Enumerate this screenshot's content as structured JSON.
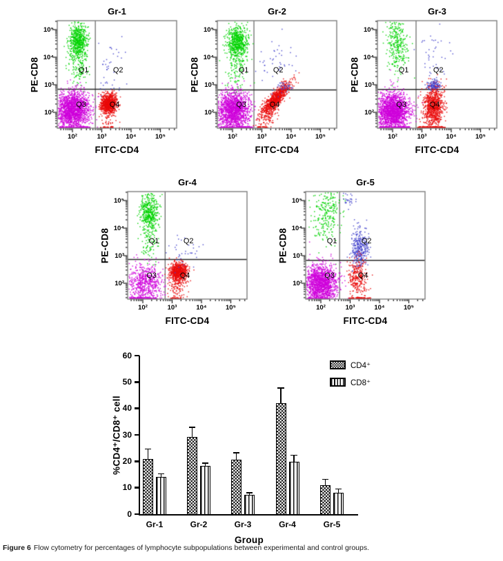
{
  "figure": {
    "caption_label": "Figure 6",
    "caption_text": "Flow cytometry for percentages of lymphocyte subpopulations between experimental and control groups."
  },
  "flow_colors": {
    "green": "#00d400",
    "magenta": "#cf00db",
    "red": "#ea0a0a",
    "blue": "#4545cd"
  },
  "chart_data": [
    {
      "type": "scatter",
      "id": "gr-1",
      "title": "Gr-1",
      "xlabel": "FITC-CD4",
      "ylabel": "PE-CD8",
      "x_scale": "log",
      "y_scale": "log",
      "x_ticks": [
        "10²",
        "10³",
        "10⁴",
        "10⁵"
      ],
      "y_ticks": [
        "10²",
        "10³",
        "10⁴",
        "10⁵"
      ],
      "x_range_log": [
        1.48,
        5.55
      ],
      "y_range_log": [
        1.42,
        5.33
      ],
      "quadrant_labels": {
        "q1": "Q1",
        "q2": "Q2",
        "q3": "Q3",
        "q4": "Q4"
      },
      "gate_log": {
        "x": 2.78,
        "y": 2.84
      },
      "clusters": [
        {
          "color": "green",
          "n": 520,
          "cx": 2.18,
          "cy": 4.62,
          "sx": 0.16,
          "sy": 0.3
        },
        {
          "color": "green",
          "n": 170,
          "cx": 2.2,
          "cy": 3.9,
          "sx": 0.17,
          "sy": 0.55
        },
        {
          "color": "magenta",
          "n": 1700,
          "cx": 2.0,
          "cy": 2.12,
          "sx": 0.28,
          "sy": 0.33
        },
        {
          "color": "red",
          "n": 900,
          "cx": 3.22,
          "cy": 2.33,
          "sx": 0.13,
          "sy": 0.17
        },
        {
          "color": "red",
          "n": 60,
          "cx": 3.18,
          "cy": 1.88,
          "sx": 0.15,
          "sy": 0.28
        },
        {
          "color": "blue",
          "n": 42,
          "cx": 3.25,
          "cy": 3.5,
          "sx": 0.28,
          "sy": 0.58
        },
        {
          "color": "magenta",
          "n": 110,
          "strip": true,
          "x0": 1.55,
          "x1": 2.6
        },
        {
          "color": "red",
          "n": 25,
          "strip": true,
          "x0": 2.95,
          "x1": 3.4
        }
      ]
    },
    {
      "type": "scatter",
      "id": "gr-2",
      "title": "Gr-2",
      "xlabel": "FITC-CD4",
      "ylabel": "PE-CD8",
      "x_scale": "log",
      "y_scale": "log",
      "x_ticks": [
        "10²",
        "10³",
        "10⁴",
        "10⁵"
      ],
      "y_ticks": [
        "10²",
        "10³",
        "10⁴",
        "10⁵"
      ],
      "x_range_log": [
        1.48,
        5.55
      ],
      "y_range_log": [
        1.42,
        5.33
      ],
      "quadrant_labels": {
        "q1": "Q1",
        "q2": "Q2",
        "q3": "Q3",
        "q4": "Q4"
      },
      "gate_log": {
        "x": 2.73,
        "y": 2.81
      },
      "clusters": [
        {
          "color": "green",
          "n": 520,
          "cx": 2.15,
          "cy": 4.6,
          "sx": 0.17,
          "sy": 0.28
        },
        {
          "color": "green",
          "n": 170,
          "cx": 2.15,
          "cy": 3.85,
          "sx": 0.18,
          "sy": 0.55
        },
        {
          "color": "magenta",
          "n": 1500,
          "cx": 2.0,
          "cy": 2.1,
          "sx": 0.28,
          "sy": 0.34
        },
        {
          "color": "red",
          "n": 850,
          "cx": 3.45,
          "cy": 2.5,
          "sx": 0.24,
          "sy": 0.3,
          "corr": 0.85
        },
        {
          "color": "red",
          "n": 120,
          "cx": 3.2,
          "cy": 1.95,
          "sx": 0.15,
          "sy": 0.28
        },
        {
          "color": "blue",
          "n": 45,
          "cx": 3.4,
          "cy": 3.7,
          "sx": 0.33,
          "sy": 0.55
        },
        {
          "color": "blue",
          "n": 35,
          "cx": 3.75,
          "cy": 2.95,
          "sx": 0.12,
          "sy": 0.08
        },
        {
          "color": "magenta",
          "n": 130,
          "strip": true,
          "x0": 1.55,
          "x1": 2.7
        },
        {
          "color": "red",
          "n": 20,
          "strip": true,
          "x0": 2.85,
          "x1": 3.2
        }
      ]
    },
    {
      "type": "scatter",
      "id": "gr-3",
      "title": "Gr-3",
      "xlabel": "FITC-CD4",
      "ylabel": "PE-CD8",
      "x_scale": "log",
      "y_scale": "log",
      "x_ticks": [
        "10²",
        "10³",
        "10⁴",
        "10⁵"
      ],
      "y_ticks": [
        "10²",
        "10³",
        "10⁴",
        "10⁵"
      ],
      "x_range_log": [
        1.48,
        5.55
      ],
      "y_range_log": [
        1.42,
        5.33
      ],
      "quadrant_labels": {
        "q1": "Q1",
        "q2": "Q2",
        "q3": "Q3",
        "q4": "Q4"
      },
      "gate_log": {
        "x": 2.8,
        "y": 2.83
      },
      "clusters": [
        {
          "color": "green",
          "n": 300,
          "cx": 2.15,
          "cy": 4.5,
          "sx": 0.18,
          "sy": 0.52
        },
        {
          "color": "magenta",
          "n": 1750,
          "cx": 1.98,
          "cy": 2.05,
          "sx": 0.29,
          "sy": 0.34
        },
        {
          "color": "red",
          "n": 850,
          "cx": 3.38,
          "cy": 2.25,
          "sx": 0.17,
          "sy": 0.38
        },
        {
          "color": "blue",
          "n": 110,
          "cx": 3.38,
          "cy": 3.02,
          "sx": 0.13,
          "sy": 0.1
        },
        {
          "color": "blue",
          "n": 40,
          "cx": 3.4,
          "cy": 3.9,
          "sx": 0.28,
          "sy": 0.55
        },
        {
          "color": "magenta",
          "n": 150,
          "strip": true,
          "x0": 1.55,
          "x1": 2.65
        },
        {
          "color": "red",
          "n": 130,
          "strip": true,
          "x0": 2.85,
          "x1": 3.8
        }
      ]
    },
    {
      "type": "scatter",
      "id": "gr-4",
      "title": "Gr-4",
      "xlabel": "FITC-CD4",
      "ylabel": "PE-CD8",
      "x_scale": "log",
      "y_scale": "log",
      "x_ticks": [
        "10²",
        "10³",
        "10⁴",
        "10⁵"
      ],
      "y_ticks": [
        "10²",
        "10³",
        "10⁴",
        "10⁵"
      ],
      "x_range_log": [
        1.48,
        5.55
      ],
      "y_range_log": [
        1.42,
        5.33
      ],
      "quadrant_labels": {
        "q1": "Q1",
        "q2": "Q2",
        "q3": "Q3",
        "q4": "Q4"
      },
      "gate_log": {
        "x": 2.76,
        "y": 2.86
      },
      "clusters": [
        {
          "color": "green",
          "n": 380,
          "cx": 2.2,
          "cy": 4.62,
          "sx": 0.15,
          "sy": 0.33
        },
        {
          "color": "green",
          "n": 130,
          "cx": 2.2,
          "cy": 3.8,
          "sx": 0.16,
          "sy": 0.5
        },
        {
          "color": "magenta",
          "n": 620,
          "cx": 2.05,
          "cy": 2.05,
          "sx": 0.3,
          "sy": 0.36
        },
        {
          "color": "red",
          "n": 650,
          "cx": 3.2,
          "cy": 2.45,
          "sx": 0.15,
          "sy": 0.16
        },
        {
          "color": "red",
          "n": 160,
          "cx": 3.15,
          "cy": 1.98,
          "sx": 0.17,
          "sy": 0.28
        },
        {
          "color": "blue",
          "n": 35,
          "cx": 3.35,
          "cy": 3.15,
          "sx": 0.3,
          "sy": 0.35
        },
        {
          "color": "magenta",
          "n": 90,
          "strip": true,
          "x0": 1.55,
          "x1": 2.55
        },
        {
          "color": "red",
          "n": 18,
          "strip": true,
          "x0": 2.95,
          "x1": 3.3
        }
      ]
    },
    {
      "type": "scatter",
      "id": "gr-5",
      "title": "Gr-5",
      "xlabel": "FITC-CD4",
      "ylabel": "PE-CD8",
      "x_scale": "log",
      "y_scale": "log",
      "x_ticks": [
        "10²",
        "10³",
        "10⁴",
        "10⁵"
      ],
      "y_ticks": [
        "10²",
        "10³",
        "10⁴",
        "10⁵"
      ],
      "x_range_log": [
        1.48,
        5.55
      ],
      "y_range_log": [
        1.42,
        5.33
      ],
      "quadrant_labels": {
        "q1": "Q1",
        "q2": "Q2",
        "q3": "Q3",
        "q4": "Q4"
      },
      "gate_log": {
        "x": 2.64,
        "y": 2.83
      },
      "clusters": [
        {
          "color": "green",
          "n": 260,
          "cx": 2.2,
          "cy": 4.55,
          "sx": 0.25,
          "sy": 0.55
        },
        {
          "color": "magenta",
          "n": 1450,
          "cx": 1.98,
          "cy": 2.0,
          "sx": 0.28,
          "sy": 0.34
        },
        {
          "color": "blue",
          "n": 330,
          "cx": 3.32,
          "cy": 3.3,
          "sx": 0.14,
          "sy": 0.38
        },
        {
          "color": "blue",
          "n": 30,
          "cx": 2.95,
          "cy": 5.05,
          "sx": 0.13,
          "sy": 0.18
        },
        {
          "color": "red",
          "n": 290,
          "cx": 3.25,
          "cy": 2.25,
          "sx": 0.16,
          "sy": 0.36
        },
        {
          "color": "red",
          "n": 60,
          "strip": true,
          "x0": 2.95,
          "x1": 3.7
        },
        {
          "color": "magenta",
          "n": 60,
          "strip": true,
          "x0": 1.55,
          "x1": 2.3
        }
      ]
    },
    {
      "type": "bar",
      "id": "lymphocyte-percentages",
      "title": "",
      "xlabel": "Group",
      "ylabel": "%CD4⁺/CD8⁺ cell",
      "categories": [
        "Gr-1",
        "Gr-2",
        "Gr-3",
        "Gr-4",
        "Gr-5"
      ],
      "series": [
        {
          "name": "CD4⁺",
          "pattern": "checker",
          "values": [
            20.8,
            29.3,
            20.5,
            41.9,
            11.0
          ],
          "errors": [
            3.9,
            3.5,
            2.7,
            5.9,
            2.2
          ]
        },
        {
          "name": "CD8⁺",
          "pattern": "vstripes",
          "values": [
            14.1,
            18.3,
            7.3,
            19.7,
            8.1
          ],
          "errors": [
            1.2,
            1.0,
            0.8,
            2.6,
            1.4
          ]
        }
      ],
      "y_ticks": [
        0,
        10,
        20,
        30,
        40,
        50,
        60
      ],
      "ylim": [
        0,
        60
      ],
      "grid": false,
      "legend_position": "top-right"
    }
  ]
}
